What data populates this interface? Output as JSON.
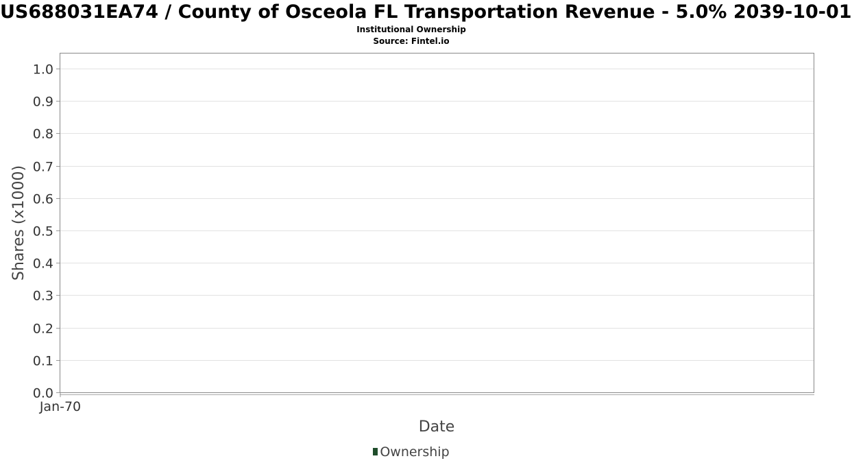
{
  "header": {
    "title": "US688031EA74 / County of Osceola FL Transportation Revenue - 5.0% 2039-10-01",
    "subtitle": "Institutional Ownership",
    "source": "Source: Fintel.io"
  },
  "legend": {
    "label": "Ownership",
    "color": "#1f4d2b"
  },
  "chart_data": {
    "type": "line",
    "title": "US688031EA74 / County of Osceola FL Transportation Revenue - 5.0% 2039-10-01",
    "xlabel": "Date",
    "ylabel": "Shares (x1000)",
    "x_ticks": [
      "Jan-70"
    ],
    "y_ticks": [
      "0.0",
      "0.1",
      "0.2",
      "0.3",
      "0.4",
      "0.5",
      "0.6",
      "0.7",
      "0.8",
      "0.9",
      "1.0"
    ],
    "ylim": [
      0,
      1.0
    ],
    "grid": true,
    "legend_position": "bottom",
    "series": [
      {
        "name": "Ownership",
        "x": [],
        "values": [],
        "color": "#1f4d2b"
      }
    ]
  }
}
